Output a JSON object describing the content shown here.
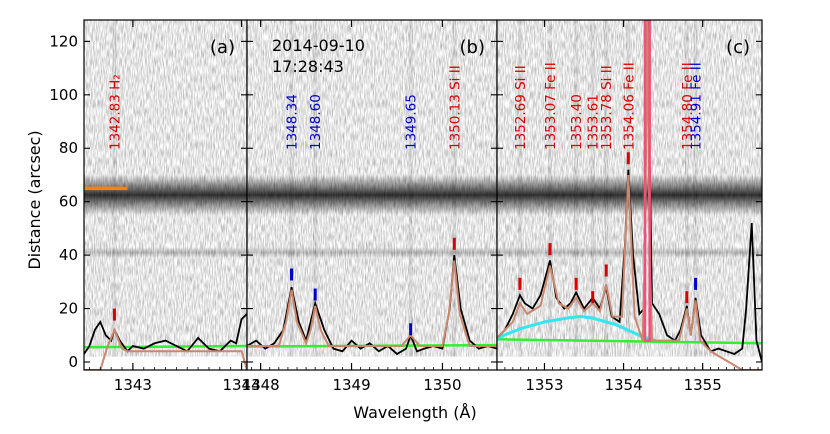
{
  "figure": {
    "date": "2014-09-10",
    "time": "17:28:43",
    "xlabel": "Wavelength (Å)",
    "ylabel": "Distance (arcsec)",
    "y_ticks": [
      "0",
      "20",
      "40",
      "60",
      "80",
      "100",
      "120"
    ]
  },
  "chart_data": [
    {
      "type": "line",
      "panel_label": "(a)",
      "xlim": [
        1342.55,
        1344.05
      ],
      "ylim": [
        -3,
        128
      ],
      "x_ticks": [
        "1343",
        "1344"
      ],
      "line_labels": [
        {
          "wavelength": 1342.83,
          "text": "1342.83 H₂",
          "color": "#dd0000"
        }
      ],
      "markers": [
        {
          "x": 1342.83,
          "y": 15.5,
          "color": "#dd0000"
        }
      ],
      "slit_marker": {
        "x": [
          1342.55,
          1342.95
        ],
        "y": 65,
        "color": "#ff7f0e"
      },
      "spectrum": {
        "x": [
          1342.55,
          1342.6,
          1342.65,
          1342.7,
          1342.75,
          1342.8,
          1342.83,
          1342.88,
          1342.95,
          1343.0,
          1343.1,
          1343.2,
          1343.3,
          1343.4,
          1343.5,
          1343.6,
          1343.7,
          1343.8,
          1343.9,
          1343.95,
          1344.0,
          1344.05
        ],
        "y": [
          3,
          6,
          12,
          15,
          10,
          8,
          12,
          8,
          4,
          6,
          5,
          7,
          8,
          6,
          4,
          9,
          5,
          4,
          8,
          7,
          16,
          18
        ]
      },
      "fit": {
        "x": [
          1342.55,
          1342.7,
          1342.76,
          1342.8,
          1342.83,
          1342.86,
          1342.9,
          1342.95,
          1343.0,
          1343.5,
          1344.0,
          1344.05
        ],
        "y": [
          -3,
          -3,
          5,
          9,
          12,
          9,
          5,
          4,
          4,
          4,
          4,
          -3
        ]
      },
      "background": {
        "x": [
          1342.55,
          1344.05
        ],
        "y": [
          5.5,
          6.0
        ]
      }
    },
    {
      "type": "line",
      "panel_label": "(b)",
      "xlim": [
        1347.85,
        1350.6
      ],
      "ylim": [
        -3,
        128
      ],
      "x_ticks": [
        "1348",
        "1349",
        "1350"
      ],
      "line_labels": [
        {
          "wavelength": 1348.34,
          "text": "1348.34",
          "color": "#0000cc"
        },
        {
          "wavelength": 1348.6,
          "text": "1348.60",
          "color": "#0000cc"
        },
        {
          "wavelength": 1349.65,
          "text": "1349.65",
          "color": "#0000cc"
        },
        {
          "wavelength": 1350.13,
          "text": "1350.13 Si II",
          "color": "#dd0000"
        }
      ],
      "markers": [
        {
          "x": 1348.34,
          "y": 30.5,
          "color": "#0000cc"
        },
        {
          "x": 1348.6,
          "y": 23.0,
          "color": "#0000cc"
        },
        {
          "x": 1349.65,
          "y": 10.0,
          "color": "#0000cc"
        },
        {
          "x": 1350.13,
          "y": 42.0,
          "color": "#dd0000"
        }
      ],
      "spectrum": {
        "x": [
          1347.85,
          1347.95,
          1348.05,
          1348.15,
          1348.25,
          1348.34,
          1348.42,
          1348.5,
          1348.6,
          1348.7,
          1348.8,
          1348.9,
          1349.0,
          1349.1,
          1349.2,
          1349.3,
          1349.4,
          1349.5,
          1349.6,
          1349.65,
          1349.72,
          1349.8,
          1349.9,
          1350.0,
          1350.08,
          1350.13,
          1350.2,
          1350.3,
          1350.4,
          1350.5,
          1350.6
        ],
        "y": [
          6,
          8,
          5,
          7,
          12,
          28,
          15,
          8,
          22,
          12,
          5,
          4,
          8,
          5,
          7,
          4,
          6,
          3,
          5,
          10,
          4,
          5,
          6,
          5,
          20,
          40,
          20,
          8,
          5,
          6,
          5
        ]
      },
      "fit": {
        "x": [
          1347.85,
          1348.2,
          1348.28,
          1348.34,
          1348.4,
          1348.5,
          1348.55,
          1348.6,
          1348.66,
          1348.75,
          1349.55,
          1349.65,
          1349.75,
          1350.0,
          1350.07,
          1350.13,
          1350.19,
          1350.3,
          1350.6
        ],
        "y": [
          6,
          6,
          15,
          27,
          15,
          7,
          12,
          21,
          12,
          6,
          6,
          10,
          6,
          6,
          18,
          38,
          18,
          6,
          6
        ]
      },
      "background": {
        "x": [
          1347.85,
          1350.6
        ],
        "y": [
          5.8,
          6.3
        ]
      }
    },
    {
      "type": "line",
      "panel_label": "(c)",
      "xlim": [
        1352.4,
        1355.75
      ],
      "ylim": [
        -3,
        128
      ],
      "x_ticks": [
        "1353",
        "1354",
        "1355"
      ],
      "line_labels": [
        {
          "wavelength": 1352.69,
          "text": "1352.69 Si II",
          "color": "#dd0000"
        },
        {
          "wavelength": 1353.07,
          "text": "1353.07 Fe II",
          "color": "#dd0000"
        },
        {
          "wavelength": 1353.4,
          "text": "1353.40",
          "color": "#dd0000"
        },
        {
          "wavelength": 1353.61,
          "text": "1353.61",
          "color": "#dd0000"
        },
        {
          "wavelength": 1353.78,
          "text": "1353.78 Si II",
          "color": "#dd0000"
        },
        {
          "wavelength": 1354.06,
          "text": "1354.06 Fe II",
          "color": "#dd0000"
        },
        {
          "wavelength": 1354.8,
          "text": "1354.80 Fe II",
          "color": "#dd0000"
        },
        {
          "wavelength": 1354.91,
          "text": "1354.91 Fe II",
          "color": "#0000cc"
        }
      ],
      "markers": [
        {
          "x": 1352.69,
          "y": 27.0,
          "color": "#dd0000"
        },
        {
          "x": 1353.07,
          "y": 40.0,
          "color": "#dd0000"
        },
        {
          "x": 1353.4,
          "y": 27.0,
          "color": "#dd0000"
        },
        {
          "x": 1353.61,
          "y": 22.0,
          "color": "#dd0000"
        },
        {
          "x": 1353.78,
          "y": 32.0,
          "color": "#dd0000"
        },
        {
          "x": 1354.06,
          "y": 74.0,
          "color": "#dd0000"
        },
        {
          "x": 1354.8,
          "y": 22.0,
          "color": "#dd0000"
        },
        {
          "x": 1354.91,
          "y": 27.0,
          "color": "#0000cc"
        }
      ],
      "spectrum": {
        "x": [
          1352.4,
          1352.5,
          1352.6,
          1352.69,
          1352.75,
          1352.85,
          1352.95,
          1353.07,
          1353.15,
          1353.25,
          1353.33,
          1353.4,
          1353.5,
          1353.61,
          1353.7,
          1353.78,
          1353.85,
          1353.95,
          1354.02,
          1354.06,
          1354.12,
          1354.2,
          1354.26,
          1354.3,
          1354.36,
          1354.45,
          1354.55,
          1354.65,
          1354.72,
          1354.8,
          1354.85,
          1354.91,
          1354.98,
          1355.1,
          1355.2,
          1355.3,
          1355.4,
          1355.5,
          1355.55,
          1355.62,
          1355.68,
          1355.75
        ],
        "y": [
          9,
          12,
          18,
          25,
          22,
          20,
          25,
          38,
          24,
          20,
          22,
          26,
          20,
          24,
          20,
          28,
          17,
          15,
          45,
          72,
          40,
          18,
          20,
          130,
          22,
          18,
          10,
          8,
          12,
          21,
          10,
          24,
          10,
          4,
          5,
          4,
          3,
          5,
          20,
          52,
          8,
          0
        ]
      },
      "fit": {
        "x": [
          1352.4,
          1352.6,
          1352.69,
          1352.78,
          1352.95,
          1353.07,
          1353.18,
          1353.3,
          1353.4,
          1353.5,
          1353.61,
          1353.7,
          1353.78,
          1353.86,
          1353.98,
          1354.06,
          1354.14,
          1354.24,
          1354.27,
          1354.3,
          1354.33,
          1354.36,
          1354.5,
          1354.7,
          1354.8,
          1354.85,
          1354.91,
          1354.97,
          1355.1,
          1355.5,
          1355.75
        ],
        "y": [
          9,
          15,
          22,
          18,
          21,
          36,
          22,
          20,
          24,
          19,
          22,
          19,
          29,
          17,
          17,
          70,
          17,
          8,
          40,
          130,
          40,
          8,
          8,
          8,
          20,
          10,
          23,
          8,
          4,
          -3,
          -3
        ]
      },
      "background": {
        "x": [
          1352.4,
          1355.75
        ],
        "y": [
          8.5,
          7.0
        ]
      },
      "continuum_gaussian": {
        "x": [
          1352.4,
          1352.7,
          1353.0,
          1353.3,
          1353.45,
          1353.6,
          1353.9,
          1354.2,
          1354.4
        ],
        "y": [
          9,
          12.5,
          15,
          16.5,
          17,
          16.5,
          14,
          10,
          8
        ]
      }
    }
  ],
  "colors": {
    "spectrum": "#000000",
    "fit": "#c9876e",
    "background": "#33ee33",
    "continuum_gaussian": "#33e6f0",
    "saturated_line": "#f0507a",
    "red_label": "#dd0000",
    "blue_label": "#0000cc",
    "slit_marker": "#ff7f0e"
  }
}
